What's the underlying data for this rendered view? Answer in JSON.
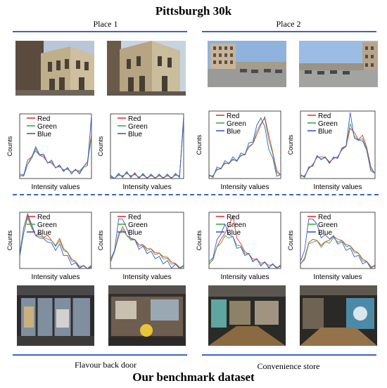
{
  "header": {
    "title": "Pittsburgh 30k"
  },
  "places": {
    "place1": "Place 1",
    "place2": "Place 2"
  },
  "legend": {
    "red": "Red",
    "green": "Green",
    "blue": "Blue"
  },
  "axes": {
    "xlabel": "Intensity values",
    "ylabel": "Counts"
  },
  "captions": {
    "left": "Flavour back door",
    "right": "Convenience store"
  },
  "footer": {
    "title": "Our benchmark dataset"
  },
  "colors": {
    "red": "#e8332d",
    "green": "#3daa4a",
    "blue": "#3a57d6",
    "accent": "#3b63c4"
  },
  "chart_data": [
    {
      "type": "line",
      "panel": "pittsburgh-place1-a",
      "series": [
        {
          "name": "Red",
          "values": [
            2,
            8,
            22,
            38,
            44,
            40,
            34,
            28,
            24,
            20,
            18,
            16,
            14,
            12,
            12,
            14,
            18,
            30,
            72
          ]
        },
        {
          "name": "Green",
          "values": [
            2,
            7,
            20,
            36,
            46,
            42,
            35,
            29,
            25,
            21,
            18,
            16,
            14,
            13,
            12,
            13,
            17,
            28,
            66
          ]
        },
        {
          "name": "Blue",
          "values": [
            3,
            10,
            26,
            40,
            48,
            44,
            36,
            30,
            26,
            22,
            18,
            16,
            14,
            12,
            11,
            12,
            14,
            26,
            100
          ]
        }
      ]
    },
    {
      "type": "line",
      "panel": "pittsburgh-place1-b",
      "series": [
        {
          "name": "Red",
          "values": [
            1,
            2,
            4,
            6,
            7,
            6,
            5,
            4,
            4,
            3,
            3,
            3,
            3,
            3,
            3,
            3,
            4,
            6,
            96
          ]
        },
        {
          "name": "Green",
          "values": [
            1,
            2,
            4,
            6,
            7,
            6,
            5,
            4,
            4,
            3,
            3,
            3,
            3,
            3,
            3,
            3,
            4,
            6,
            94
          ]
        },
        {
          "name": "Blue",
          "values": [
            1,
            2,
            4,
            6,
            7,
            6,
            5,
            4,
            4,
            3,
            3,
            3,
            3,
            3,
            3,
            3,
            4,
            6,
            100
          ]
        }
      ]
    },
    {
      "type": "line",
      "panel": "pittsburgh-place2-a",
      "series": [
        {
          "name": "Red",
          "values": [
            2,
            6,
            12,
            18,
            22,
            26,
            28,
            30,
            34,
            40,
            48,
            56,
            68,
            86,
            96,
            70,
            40,
            14,
            4
          ]
        },
        {
          "name": "Green",
          "values": [
            2,
            6,
            12,
            18,
            22,
            26,
            28,
            30,
            34,
            40,
            48,
            58,
            72,
            90,
            92,
            64,
            36,
            12,
            3
          ]
        },
        {
          "name": "Blue",
          "values": [
            2,
            6,
            14,
            20,
            24,
            28,
            30,
            32,
            36,
            42,
            52,
            62,
            80,
            100,
            78,
            50,
            28,
            8,
            2
          ]
        }
      ]
    },
    {
      "type": "line",
      "panel": "pittsburgh-place2-b",
      "series": [
        {
          "name": "Red",
          "values": [
            2,
            6,
            14,
            24,
            32,
            36,
            32,
            28,
            30,
            36,
            44,
            52,
            78,
            74,
            60,
            70,
            48,
            20,
            6
          ]
        },
        {
          "name": "Green",
          "values": [
            2,
            6,
            14,
            24,
            32,
            34,
            30,
            28,
            30,
            36,
            44,
            54,
            84,
            70,
            58,
            66,
            44,
            18,
            5
          ]
        },
        {
          "name": "Blue",
          "values": [
            2,
            6,
            14,
            24,
            32,
            34,
            30,
            28,
            30,
            36,
            44,
            56,
            100,
            68,
            56,
            64,
            40,
            16,
            4
          ]
        }
      ]
    },
    {
      "type": "line",
      "panel": "benchmark-left-a",
      "series": [
        {
          "name": "Red",
          "values": [
            20,
            70,
            96,
            80,
            62,
            70,
            58,
            66,
            52,
            46,
            56,
            40,
            30,
            20,
            12,
            6,
            3,
            1,
            1
          ]
        },
        {
          "name": "Green",
          "values": [
            20,
            72,
            98,
            86,
            60,
            66,
            56,
            60,
            50,
            46,
            50,
            38,
            28,
            18,
            10,
            5,
            2,
            1,
            1
          ]
        },
        {
          "name": "Blue",
          "values": [
            22,
            84,
            100,
            90,
            58,
            64,
            52,
            56,
            44,
            40,
            42,
            30,
            20,
            12,
            6,
            3,
            1,
            1,
            1
          ]
        }
      ]
    },
    {
      "type": "line",
      "panel": "benchmark-left-b",
      "series": [
        {
          "name": "Red",
          "values": [
            10,
            34,
            60,
            82,
            62,
            60,
            54,
            48,
            44,
            40,
            36,
            32,
            28,
            24,
            20,
            14,
            8,
            4,
            2
          ]
        },
        {
          "name": "Green",
          "values": [
            10,
            36,
            64,
            78,
            60,
            58,
            52,
            46,
            42,
            38,
            34,
            30,
            26,
            22,
            16,
            12,
            6,
            3,
            1
          ]
        },
        {
          "name": "Blue",
          "values": [
            12,
            40,
            90,
            100,
            72,
            62,
            50,
            42,
            38,
            34,
            28,
            24,
            18,
            14,
            10,
            6,
            3,
            1,
            1
          ]
        }
      ]
    },
    {
      "type": "line",
      "panel": "benchmark-right-a",
      "series": [
        {
          "name": "Red",
          "values": [
            6,
            20,
            40,
            58,
            66,
            84,
            100,
            60,
            46,
            34,
            26,
            20,
            16,
            12,
            10,
            8,
            6,
            4,
            2
          ]
        },
        {
          "name": "Green",
          "values": [
            6,
            20,
            38,
            52,
            60,
            62,
            58,
            48,
            40,
            32,
            24,
            18,
            14,
            10,
            8,
            6,
            4,
            3,
            2
          ]
        },
        {
          "name": "Blue",
          "values": [
            8,
            26,
            50,
            72,
            80,
            70,
            56,
            44,
            36,
            30,
            24,
            18,
            14,
            10,
            8,
            6,
            4,
            3,
            2
          ]
        }
      ]
    },
    {
      "type": "line",
      "panel": "benchmark-right-b",
      "series": [
        {
          "name": "Red",
          "values": [
            6,
            22,
            48,
            58,
            52,
            46,
            50,
            56,
            60,
            58,
            52,
            48,
            42,
            36,
            28,
            20,
            12,
            6,
            2
          ]
        },
        {
          "name": "Green",
          "values": [
            6,
            20,
            44,
            54,
            50,
            44,
            48,
            52,
            56,
            54,
            50,
            46,
            40,
            34,
            26,
            18,
            10,
            5,
            2
          ]
        },
        {
          "name": "Blue",
          "values": [
            8,
            40,
            90,
            100,
            80,
            64,
            60,
            62,
            58,
            52,
            46,
            40,
            34,
            28,
            20,
            14,
            8,
            4,
            2
          ]
        }
      ]
    }
  ]
}
